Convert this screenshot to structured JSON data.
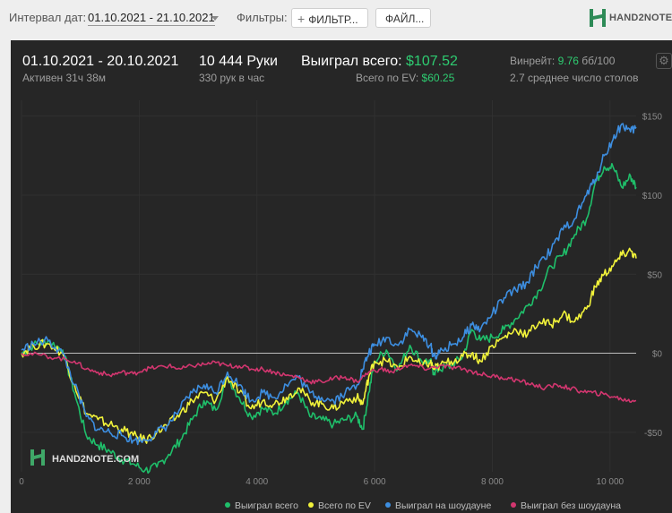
{
  "toolbar": {
    "date_label": "Интервал дат:",
    "date_value": "01.10.2021 - 21.10.2021",
    "filters_label": "Фильтры:",
    "filter_button": "ФИЛЬТР...",
    "file_button": "ФАЙЛ...",
    "logo_text": "HAND2NOTE.COM"
  },
  "summary": {
    "range": "01.10.2021 - 20.10.2021",
    "active": "Активен 31ч 38м",
    "hands": "10 444 Руки",
    "hands_rate": "330 рук в час",
    "won_label": "Выиграл всего:",
    "won_value": "$107.52",
    "ev_label": "Всего по EV:",
    "ev_value": "$60.25",
    "winrate_label": "Винрейт:",
    "winrate_value": "9.76",
    "winrate_unit": "бб/100",
    "tables": "2.7 среднее число столов"
  },
  "watermark": "HAND2NOTE.COM",
  "colors": {
    "total": "#1fbf6a",
    "ev": "#f1f23a",
    "showdown": "#3d8ee0",
    "nonshowdown": "#d2366f"
  },
  "chart_data": {
    "type": "line",
    "xlim": [
      0,
      10444
    ],
    "ylim": [
      -75,
      160
    ],
    "x_ticks": [
      0,
      2000,
      4000,
      6000,
      8000,
      10000
    ],
    "x_tick_labels": [
      "0",
      "2 000",
      "4 000",
      "6 000",
      "8 000",
      "10 000"
    ],
    "y_ticks": [
      -50,
      0,
      50,
      100,
      150
    ],
    "y_tick_labels": [
      "-$50",
      "$0",
      "$50",
      "$100",
      "$150"
    ],
    "grid": true,
    "legend_position": "bottom-right",
    "series": [
      {
        "name": "Выиграл всего",
        "color": "#1fbf6a",
        "points": [
          [
            0,
            0
          ],
          [
            200,
            5
          ],
          [
            450,
            8
          ],
          [
            700,
            2
          ],
          [
            900,
            -25
          ],
          [
            1100,
            -52
          ],
          [
            1300,
            -58
          ],
          [
            1500,
            -62
          ],
          [
            1700,
            -67
          ],
          [
            1900,
            -70
          ],
          [
            2100,
            -74
          ],
          [
            2300,
            -72
          ],
          [
            2500,
            -64
          ],
          [
            2700,
            -55
          ],
          [
            2900,
            -42
          ],
          [
            3100,
            -30
          ],
          [
            3300,
            -36
          ],
          [
            3500,
            -15
          ],
          [
            3700,
            -28
          ],
          [
            3900,
            -40
          ],
          [
            4100,
            -35
          ],
          [
            4300,
            -38
          ],
          [
            4500,
            -30
          ],
          [
            4700,
            -25
          ],
          [
            4900,
            -40
          ],
          [
            5100,
            -42
          ],
          [
            5300,
            -45
          ],
          [
            5500,
            -42
          ],
          [
            5700,
            -40
          ],
          [
            5800,
            -48
          ],
          [
            5900,
            -25
          ],
          [
            6000,
            -5
          ],
          [
            6200,
            2
          ],
          [
            6400,
            -10
          ],
          [
            6600,
            5
          ],
          [
            6800,
            -5
          ],
          [
            6950,
            -5
          ],
          [
            7000,
            -12
          ],
          [
            7100,
            -10
          ],
          [
            7300,
            -8
          ],
          [
            7500,
            -2
          ],
          [
            7650,
            15
          ],
          [
            7800,
            8
          ],
          [
            8000,
            10
          ],
          [
            8200,
            15
          ],
          [
            8400,
            22
          ],
          [
            8600,
            30
          ],
          [
            8800,
            40
          ],
          [
            9000,
            55
          ],
          [
            9200,
            62
          ],
          [
            9400,
            75
          ],
          [
            9600,
            85
          ],
          [
            9750,
            108
          ],
          [
            9900,
            118
          ],
          [
            10050,
            118
          ],
          [
            10200,
            105
          ],
          [
            10350,
            112
          ],
          [
            10444,
            105
          ]
        ]
      },
      {
        "name": "Всего по EV",
        "color": "#f1f23a",
        "points": [
          [
            0,
            0
          ],
          [
            200,
            5
          ],
          [
            450,
            6
          ],
          [
            700,
            0
          ],
          [
            900,
            -20
          ],
          [
            1100,
            -38
          ],
          [
            1300,
            -42
          ],
          [
            1500,
            -45
          ],
          [
            1700,
            -48
          ],
          [
            1900,
            -52
          ],
          [
            2100,
            -55
          ],
          [
            2300,
            -50
          ],
          [
            2500,
            -45
          ],
          [
            2700,
            -38
          ],
          [
            2900,
            -30
          ],
          [
            3100,
            -25
          ],
          [
            3300,
            -30
          ],
          [
            3500,
            -15
          ],
          [
            3700,
            -25
          ],
          [
            3900,
            -35
          ],
          [
            4100,
            -30
          ],
          [
            4300,
            -32
          ],
          [
            4500,
            -28
          ],
          [
            4700,
            -22
          ],
          [
            4900,
            -30
          ],
          [
            5100,
            -32
          ],
          [
            5300,
            -35
          ],
          [
            5500,
            -30
          ],
          [
            5700,
            -28
          ],
          [
            5800,
            -32
          ],
          [
            5900,
            -15
          ],
          [
            6000,
            -5
          ],
          [
            6200,
            -5
          ],
          [
            6400,
            -10
          ],
          [
            6600,
            -2
          ],
          [
            6800,
            -8
          ],
          [
            6950,
            -6
          ],
          [
            7000,
            -10
          ],
          [
            7100,
            -8
          ],
          [
            7300,
            -5
          ],
          [
            7500,
            -2
          ],
          [
            7650,
            0
          ],
          [
            7800,
            -5
          ],
          [
            8000,
            5
          ],
          [
            8200,
            10
          ],
          [
            8400,
            15
          ],
          [
            8600,
            12
          ],
          [
            8800,
            20
          ],
          [
            9000,
            18
          ],
          [
            9200,
            25
          ],
          [
            9400,
            20
          ],
          [
            9600,
            28
          ],
          [
            9750,
            42
          ],
          [
            9900,
            50
          ],
          [
            10050,
            55
          ],
          [
            10200,
            62
          ],
          [
            10350,
            65
          ],
          [
            10444,
            60
          ]
        ]
      },
      {
        "name": "Выиграл на шоудауне",
        "color": "#3d8ee0",
        "points": [
          [
            0,
            2
          ],
          [
            200,
            6
          ],
          [
            450,
            8
          ],
          [
            700,
            0
          ],
          [
            900,
            -20
          ],
          [
            1100,
            -40
          ],
          [
            1300,
            -48
          ],
          [
            1500,
            -50
          ],
          [
            1700,
            -52
          ],
          [
            1900,
            -55
          ],
          [
            2100,
            -55
          ],
          [
            2300,
            -50
          ],
          [
            2500,
            -45
          ],
          [
            2700,
            -35
          ],
          [
            2900,
            -25
          ],
          [
            3100,
            -20
          ],
          [
            3300,
            -25
          ],
          [
            3500,
            -12
          ],
          [
            3700,
            -20
          ],
          [
            3900,
            -30
          ],
          [
            4100,
            -25
          ],
          [
            4300,
            -28
          ],
          [
            4500,
            -20
          ],
          [
            4700,
            -15
          ],
          [
            4900,
            -25
          ],
          [
            5100,
            -28
          ],
          [
            5300,
            -30
          ],
          [
            5500,
            -25
          ],
          [
            5700,
            -20
          ],
          [
            5800,
            -10
          ],
          [
            5900,
            0
          ],
          [
            6000,
            5
          ],
          [
            6200,
            10
          ],
          [
            6400,
            5
          ],
          [
            6600,
            15
          ],
          [
            6800,
            10
          ],
          [
            6950,
            5
          ],
          [
            7000,
            -2
          ],
          [
            7100,
            0
          ],
          [
            7300,
            5
          ],
          [
            7500,
            10
          ],
          [
            7650,
            18
          ],
          [
            7800,
            15
          ],
          [
            8000,
            25
          ],
          [
            8200,
            35
          ],
          [
            8400,
            40
          ],
          [
            8600,
            45
          ],
          [
            8800,
            58
          ],
          [
            9000,
            65
          ],
          [
            9200,
            78
          ],
          [
            9400,
            85
          ],
          [
            9600,
            100
          ],
          [
            9750,
            110
          ],
          [
            9900,
            125
          ],
          [
            10050,
            135
          ],
          [
            10200,
            145
          ],
          [
            10350,
            140
          ],
          [
            10444,
            143
          ]
        ]
      },
      {
        "name": "Выиграл без шоудауна",
        "color": "#d2366f",
        "points": [
          [
            0,
            0
          ],
          [
            300,
            -1
          ],
          [
            600,
            -3
          ],
          [
            900,
            -5
          ],
          [
            1100,
            -10
          ],
          [
            1300,
            -12
          ],
          [
            1500,
            -14
          ],
          [
            1700,
            -12
          ],
          [
            1900,
            -13
          ],
          [
            2100,
            -10
          ],
          [
            2300,
            -9
          ],
          [
            2500,
            -8
          ],
          [
            2700,
            -10
          ],
          [
            2900,
            -8
          ],
          [
            3100,
            -7
          ],
          [
            3300,
            -6
          ],
          [
            3500,
            -8
          ],
          [
            3700,
            -8
          ],
          [
            3900,
            -10
          ],
          [
            4100,
            -10
          ],
          [
            4300,
            -12
          ],
          [
            4500,
            -14
          ],
          [
            4700,
            -15
          ],
          [
            4900,
            -18
          ],
          [
            5100,
            -18
          ],
          [
            5300,
            -16
          ],
          [
            5500,
            -15
          ],
          [
            5700,
            -18
          ],
          [
            5900,
            -12
          ],
          [
            6100,
            -10
          ],
          [
            6300,
            -12
          ],
          [
            6500,
            -8
          ],
          [
            6700,
            -8
          ],
          [
            6900,
            -10
          ],
          [
            7100,
            -8
          ],
          [
            7300,
            -9
          ],
          [
            7500,
            -10
          ],
          [
            7700,
            -12
          ],
          [
            7900,
            -14
          ],
          [
            8100,
            -15
          ],
          [
            8300,
            -16
          ],
          [
            8500,
            -18
          ],
          [
            8700,
            -20
          ],
          [
            8900,
            -22
          ],
          [
            9100,
            -20
          ],
          [
            9300,
            -22
          ],
          [
            9500,
            -24
          ],
          [
            9700,
            -25
          ],
          [
            9900,
            -26
          ],
          [
            10100,
            -28
          ],
          [
            10300,
            -30
          ],
          [
            10444,
            -30
          ]
        ]
      }
    ]
  }
}
